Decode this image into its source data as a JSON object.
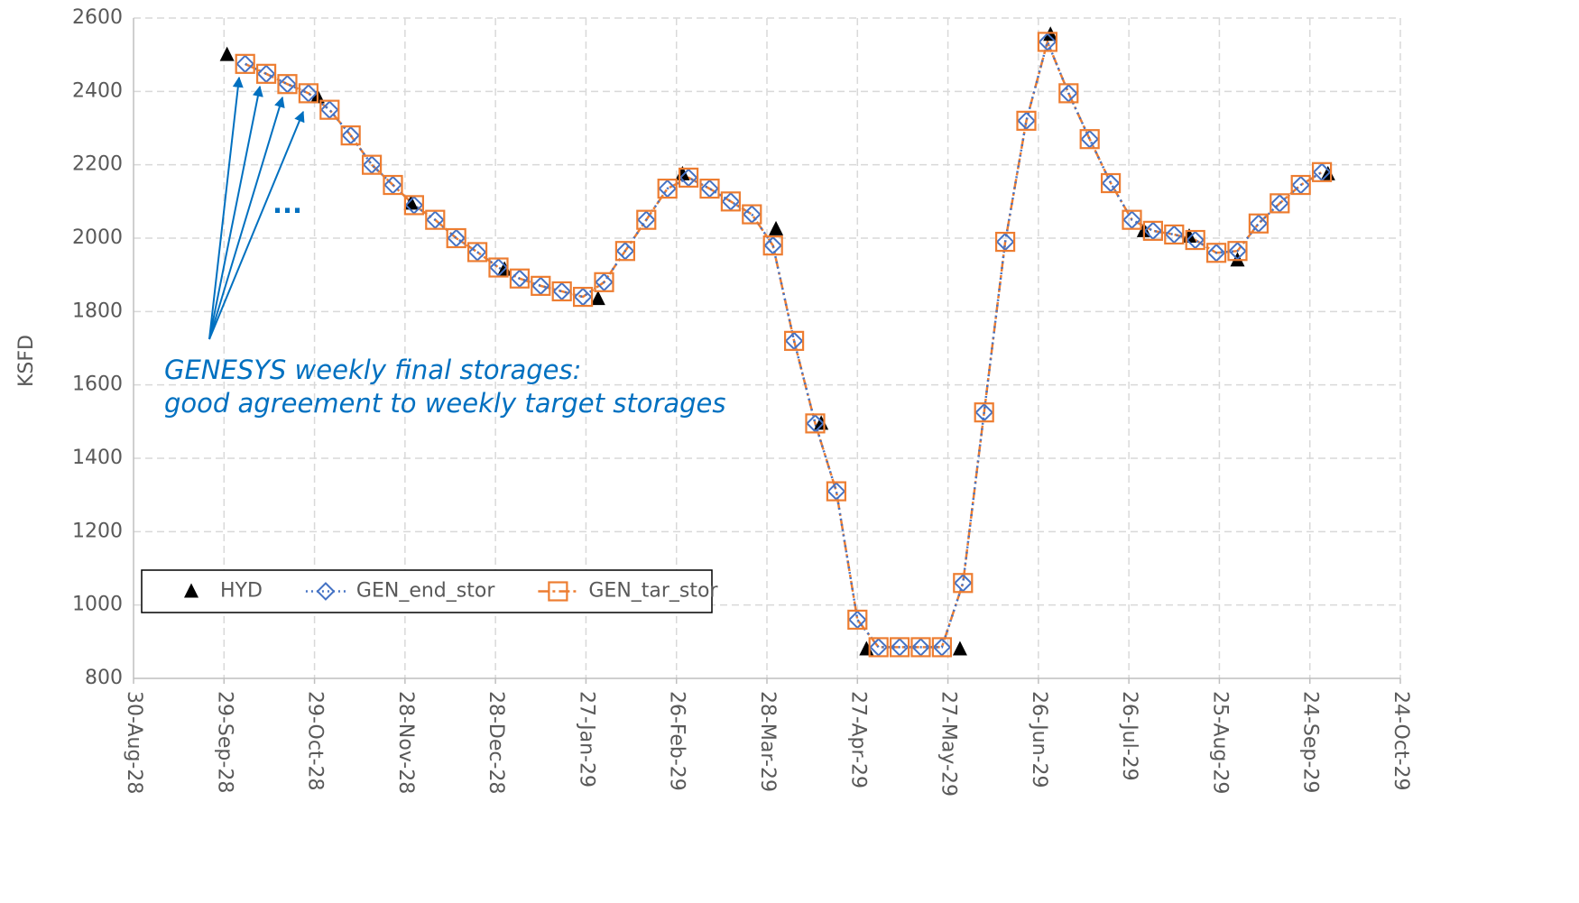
{
  "chart_data": {
    "type": "line",
    "y_label": "KSFD",
    "ylim": [
      800,
      2600
    ],
    "yticks": [
      800,
      1000,
      1200,
      1400,
      1600,
      1800,
      2000,
      2200,
      2400,
      2600
    ],
    "xlim": [
      "2028-08-30",
      "2029-10-24"
    ],
    "xticks": [
      {
        "value": "2028-08-30",
        "label": "30-Aug-28"
      },
      {
        "value": "2028-09-29",
        "label": "29-Sep-28"
      },
      {
        "value": "2028-10-29",
        "label": "29-Oct-28"
      },
      {
        "value": "2028-11-28",
        "label": "28-Nov-28"
      },
      {
        "value": "2028-12-28",
        "label": "28-Dec-28"
      },
      {
        "value": "2029-01-27",
        "label": "27-Jan-29"
      },
      {
        "value": "2029-02-26",
        "label": "26-Feb-29"
      },
      {
        "value": "2029-03-28",
        "label": "28-Mar-29"
      },
      {
        "value": "2029-04-27",
        "label": "27-Apr-29"
      },
      {
        "value": "2029-05-27",
        "label": "27-May-29"
      },
      {
        "value": "2029-06-26",
        "label": "26-Jun-29"
      },
      {
        "value": "2029-07-26",
        "label": "26-Jul-29"
      },
      {
        "value": "2029-08-25",
        "label": "25-Aug-29"
      },
      {
        "value": "2029-09-24",
        "label": "24-Sep-29"
      },
      {
        "value": "2029-10-24",
        "label": "24-Oct-29"
      }
    ],
    "grid": true,
    "legend": "lower left",
    "annotations": [
      "GENESYS weekly final storages:",
      "good agreement to weekly target storages",
      "..."
    ],
    "series": [
      {
        "name": "HYD",
        "color": "#000000",
        "marker": "triangle",
        "line": "none",
        "x": [
          "2028-09-30",
          "2028-10-30",
          "2028-11-30",
          "2028-12-31",
          "2029-01-31",
          "2029-02-28",
          "2029-03-31",
          "2029-04-15",
          "2029-04-30",
          "2029-05-31",
          "2029-06-30",
          "2029-07-31",
          "2029-08-15",
          "2029-08-31",
          "2029-09-30"
        ],
        "values": [
          2500,
          2385,
          2095,
          1915,
          1835,
          2175,
          2025,
          1495,
          880,
          880,
          2555,
          2020,
          2005,
          1940,
          2175
        ]
      },
      {
        "name": "GEN_end_stor",
        "color": "#4472c4",
        "marker": "diamond",
        "line": "dotted",
        "x": [
          "2028-10-06",
          "2028-10-13",
          "2028-10-20",
          "2028-10-27",
          "2028-11-03",
          "2028-11-10",
          "2028-11-17",
          "2028-11-24",
          "2028-12-01",
          "2028-12-08",
          "2028-12-15",
          "2028-12-22",
          "2028-12-29",
          "2029-01-05",
          "2029-01-12",
          "2029-01-19",
          "2029-01-26",
          "2029-02-02",
          "2029-02-09",
          "2029-02-16",
          "2029-02-23",
          "2029-03-02",
          "2029-03-09",
          "2029-03-16",
          "2029-03-23",
          "2029-03-30",
          "2029-04-06",
          "2029-04-13",
          "2029-04-20",
          "2029-04-27",
          "2029-05-04",
          "2029-05-11",
          "2029-05-18",
          "2029-05-25",
          "2029-06-01",
          "2029-06-08",
          "2029-06-15",
          "2029-06-22",
          "2029-06-29",
          "2029-07-06",
          "2029-07-13",
          "2029-07-20",
          "2029-07-27",
          "2029-08-03",
          "2029-08-10",
          "2029-08-17",
          "2029-08-24",
          "2029-08-31",
          "2029-09-07",
          "2029-09-14",
          "2029-09-21",
          "2029-09-28"
        ],
        "values": [
          2475,
          2448,
          2420,
          2395,
          2350,
          2280,
          2200,
          2145,
          2090,
          2050,
          2000,
          1962,
          1920,
          1890,
          1870,
          1855,
          1840,
          1880,
          1965,
          2050,
          2135,
          2165,
          2135,
          2100,
          2065,
          1980,
          1720,
          1495,
          1310,
          960,
          885,
          885,
          885,
          885,
          1060,
          1525,
          1990,
          2320,
          2535,
          2395,
          2270,
          2150,
          2050,
          2020,
          2010,
          1995,
          1960,
          1965,
          2040,
          2095,
          2145,
          2180
        ]
      },
      {
        "name": "GEN_tar_stor",
        "color": "#ed7d31",
        "marker": "square",
        "line": "dashdot",
        "x": [
          "2028-10-06",
          "2028-10-13",
          "2028-10-20",
          "2028-10-27",
          "2028-11-03",
          "2028-11-10",
          "2028-11-17",
          "2028-11-24",
          "2028-12-01",
          "2028-12-08",
          "2028-12-15",
          "2028-12-22",
          "2028-12-29",
          "2029-01-05",
          "2029-01-12",
          "2029-01-19",
          "2029-01-26",
          "2029-02-02",
          "2029-02-09",
          "2029-02-16",
          "2029-02-23",
          "2029-03-02",
          "2029-03-09",
          "2029-03-16",
          "2029-03-23",
          "2029-03-30",
          "2029-04-06",
          "2029-04-13",
          "2029-04-20",
          "2029-04-27",
          "2029-05-04",
          "2029-05-11",
          "2029-05-18",
          "2029-05-25",
          "2029-06-01",
          "2029-06-08",
          "2029-06-15",
          "2029-06-22",
          "2029-06-29",
          "2029-07-06",
          "2029-07-13",
          "2029-07-20",
          "2029-07-27",
          "2029-08-03",
          "2029-08-10",
          "2029-08-17",
          "2029-08-24",
          "2029-08-31",
          "2029-09-07",
          "2029-09-14",
          "2029-09-21",
          "2029-09-28"
        ],
        "values": [
          2475,
          2448,
          2420,
          2395,
          2350,
          2280,
          2200,
          2145,
          2090,
          2050,
          2000,
          1962,
          1920,
          1890,
          1870,
          1855,
          1840,
          1880,
          1965,
          2050,
          2135,
          2165,
          2135,
          2100,
          2065,
          1980,
          1720,
          1495,
          1310,
          960,
          885,
          885,
          885,
          885,
          1060,
          1525,
          1990,
          2320,
          2535,
          2395,
          2270,
          2150,
          2050,
          2020,
          2010,
          1995,
          1960,
          1965,
          2040,
          2095,
          2145,
          2180
        ]
      }
    ]
  }
}
